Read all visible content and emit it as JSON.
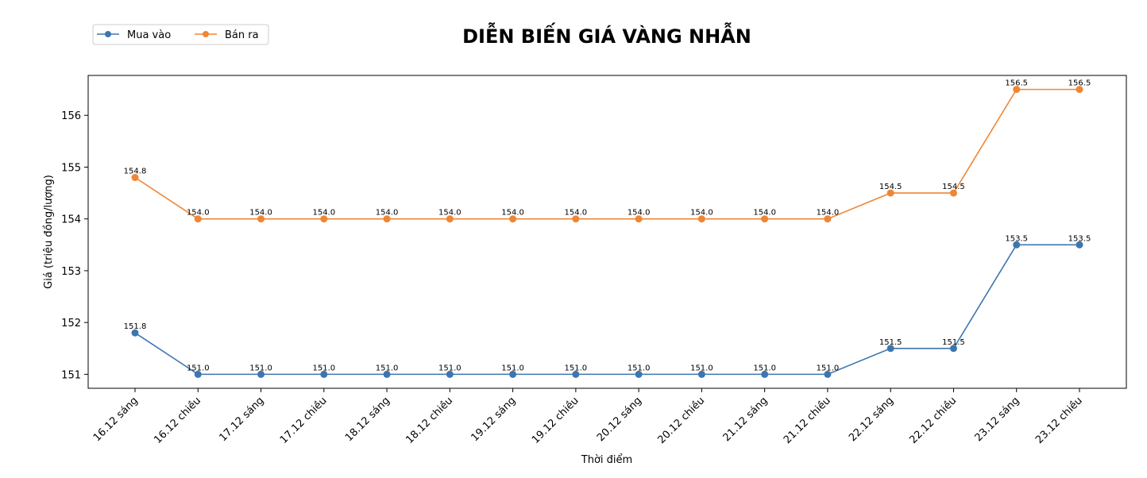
{
  "chart_data": {
    "type": "line",
    "title": "DIỄN BIẾN GIÁ VÀNG NHẪN",
    "xlabel": "Thời điểm",
    "ylabel": "Giá (triệu đồng/lượng)",
    "categories": [
      "16.12 sáng",
      "16.12 chiều",
      "17.12 sáng",
      "17.12 chiều",
      "18.12 sáng",
      "18.12 chiều",
      "19.12 sáng",
      "19.12 chiều",
      "20.12 sáng",
      "20.12 chiều",
      "21.12 sáng",
      "21.12 chiều",
      "22.12 sáng",
      "22.12 chiều",
      "23.12 sáng",
      "23.12 chiều"
    ],
    "series": [
      {
        "name": "Mua vào",
        "color": "#3d76af",
        "values": [
          151.8,
          151.0,
          151.0,
          151.0,
          151.0,
          151.0,
          151.0,
          151.0,
          151.0,
          151.0,
          151.0,
          151.0,
          151.5,
          151.5,
          153.5,
          153.5
        ],
        "labels": [
          "151.8",
          "151.0",
          "151.0",
          "151.0",
          "151.0",
          "151.0",
          "151.0",
          "151.0",
          "151.0",
          "151.0",
          "151.0",
          "151.0",
          "151.5",
          "151.5",
          "153.5",
          "153.5"
        ]
      },
      {
        "name": "Bán ra",
        "color": "#ef8636",
        "values": [
          154.8,
          154.0,
          154.0,
          154.0,
          154.0,
          154.0,
          154.0,
          154.0,
          154.0,
          154.0,
          154.0,
          154.0,
          154.5,
          154.5,
          156.5,
          156.5
        ],
        "labels": [
          "154.8",
          "154.0",
          "154.0",
          "154.0",
          "154.0",
          "154.0",
          "154.0",
          "154.0",
          "154.0",
          "154.0",
          "154.0",
          "154.0",
          "154.5",
          "154.5",
          "156.5",
          "156.5"
        ]
      }
    ],
    "y_ticks": [
      "151",
      "152",
      "153",
      "154",
      "155",
      "156"
    ],
    "ylim": [
      150.73,
      156.77
    ],
    "legend_position": "top-left",
    "grid": false
  }
}
